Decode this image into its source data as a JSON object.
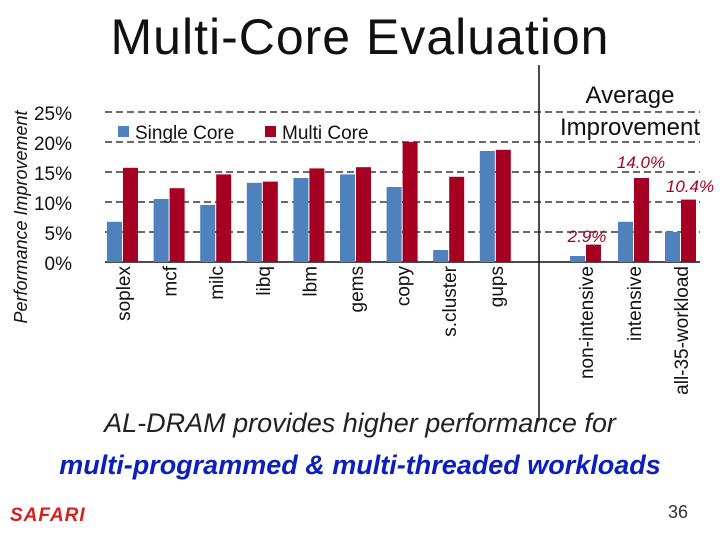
{
  "slide": {
    "title": "Multi-Core Evaluation",
    "subtitle_line1": "AL-DRAM provides higher performance for",
    "subtitle_line2": "multi-programmed & multi-threaded workloads",
    "logo": "SAFARI",
    "page_number": "36",
    "average_title": "Average Improvement"
  },
  "colors": {
    "single": "#4f81bd",
    "multi": "#a50021",
    "annotation": "#a50021"
  },
  "chart_data": {
    "type": "bar",
    "title": "Multi-Core Evaluation",
    "ylabel": "Performance Improvement",
    "xlabel": "",
    "ylim": [
      0,
      25
    ],
    "yticks": [
      "0%",
      "5%",
      "10%",
      "15%",
      "20%",
      "25%"
    ],
    "grid": "dashed horizontal",
    "legend": [
      "Single Core",
      "Multi Core"
    ],
    "legend_position": "top",
    "panels": [
      {
        "name": "benchmarks",
        "categories": [
          "soplex",
          "mcf",
          "milc",
          "libq",
          "lbm",
          "gems",
          "copy",
          "s.cluster",
          "gups"
        ],
        "series": [
          {
            "name": "Single Core",
            "values": [
              6.7,
              10.5,
              9.5,
              13.2,
              14.0,
              14.6,
              12.5,
              2.0,
              18.5
            ]
          },
          {
            "name": "Multi Core",
            "values": [
              15.7,
              12.3,
              14.6,
              13.4,
              15.6,
              15.8,
              20.0,
              14.2,
              18.7
            ]
          }
        ]
      },
      {
        "name": "Average Improvement",
        "categories": [
          "non-intensive",
          "intensive",
          "all-35-workload"
        ],
        "series": [
          {
            "name": "Single Core",
            "values": [
              1.0,
              6.7,
              5.0
            ]
          },
          {
            "name": "Multi Core",
            "values": [
              2.9,
              14.0,
              10.4
            ]
          }
        ],
        "data_labels": [
          "2.9%",
          "14.0%",
          "10.4%"
        ]
      }
    ]
  }
}
